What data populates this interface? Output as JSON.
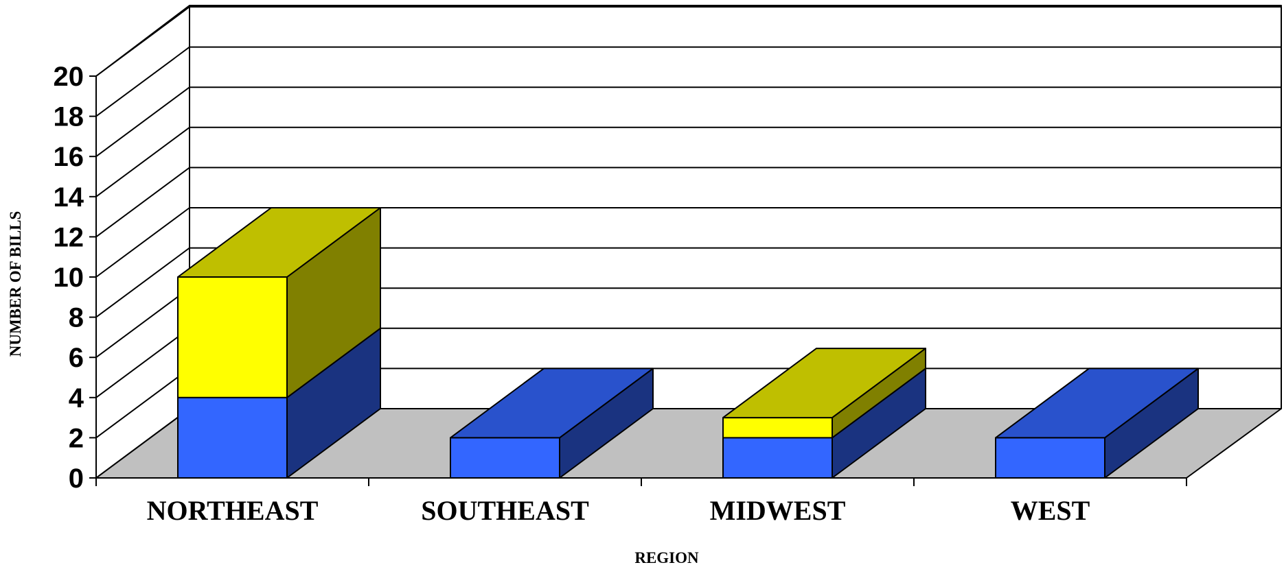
{
  "chart_data": {
    "type": "bar",
    "stacked": true,
    "three_d": true,
    "categories": [
      "NORTHEAST",
      "SOUTHEAST",
      "MIDWEST",
      "WEST"
    ],
    "series": [
      {
        "values": [
          4,
          2,
          2,
          2
        ]
      },
      {
        "values": [
          6,
          0,
          1,
          0
        ]
      }
    ],
    "xlabel": "REGION",
    "ylabel": "NUMBER OF BILLS",
    "ylim": [
      0,
      20
    ],
    "yticks": [
      "0",
      "2",
      "4",
      "6",
      "8",
      "10",
      "12",
      "14",
      "16",
      "18",
      "20"
    ],
    "grid": true,
    "legend": "none",
    "colors": {
      "series_front": [
        "#3366FF",
        "#FFFF00"
      ],
      "series_side": [
        "#1A3380",
        "#808000"
      ],
      "series_top": [
        "#2952CC",
        "#BFBF00"
      ],
      "floor": "#C0C0C0",
      "background": "#FFFFFF",
      "lines": "#000000"
    }
  }
}
